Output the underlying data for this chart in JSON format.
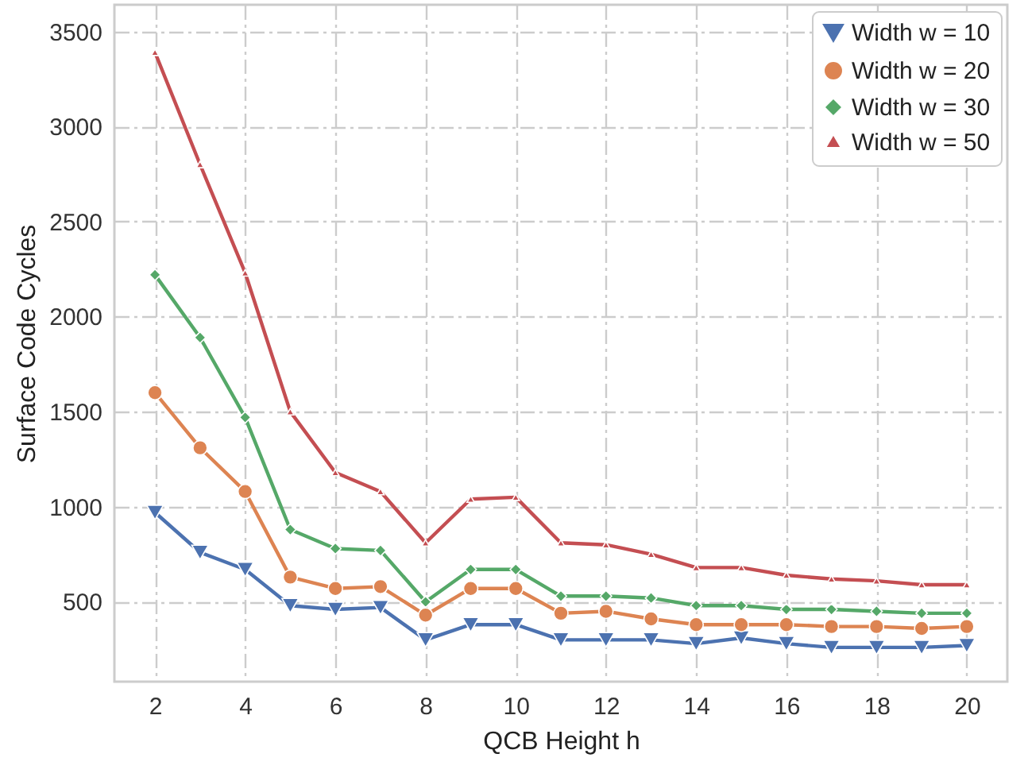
{
  "chart_data": {
    "type": "line",
    "xlabel": "QCB Height h",
    "ylabel": "Surface Code Cycles",
    "x": [
      2,
      3,
      4,
      5,
      6,
      7,
      8,
      9,
      10,
      11,
      12,
      13,
      14,
      15,
      16,
      17,
      18,
      19,
      20
    ],
    "xlim": [
      1.1,
      20.9
    ],
    "xticks": [
      2,
      4,
      6,
      8,
      10,
      12,
      14,
      16,
      18,
      20
    ],
    "ylim": [
      80,
      3640
    ],
    "yticks": [
      500,
      1000,
      1500,
      2000,
      2500,
      3000,
      3500
    ],
    "grid": true,
    "legend": "top right",
    "line_style": "solid",
    "series": [
      {
        "name": "Width w = 10",
        "color": "#4c72b0",
        "marker": "triangle-down",
        "values": [
          970,
          760,
          670,
          480,
          460,
          470,
          300,
          380,
          380,
          300,
          300,
          300,
          280,
          310,
          280,
          260,
          260,
          260,
          270
        ]
      },
      {
        "name": "Width w = 20",
        "color": "#dd8452",
        "marker": "circle",
        "values": [
          1600,
          1310,
          1080,
          630,
          570,
          580,
          430,
          570,
          570,
          440,
          450,
          410,
          380,
          380,
          380,
          370,
          370,
          360,
          370
        ]
      },
      {
        "name": "Width w = 30",
        "color": "#55a868",
        "marker": "diamond",
        "values": [
          2220,
          1890,
          1470,
          880,
          780,
          770,
          500,
          670,
          670,
          530,
          530,
          520,
          480,
          480,
          460,
          460,
          450,
          440,
          440
        ]
      },
      {
        "name": "Width w = 50",
        "color": "#c44e52",
        "marker": "triangle",
        "values": [
          3390,
          2800,
          2230,
          1500,
          1180,
          1080,
          810,
          1040,
          1050,
          810,
          800,
          750,
          680,
          680,
          640,
          620,
          610,
          590,
          590
        ]
      }
    ]
  }
}
